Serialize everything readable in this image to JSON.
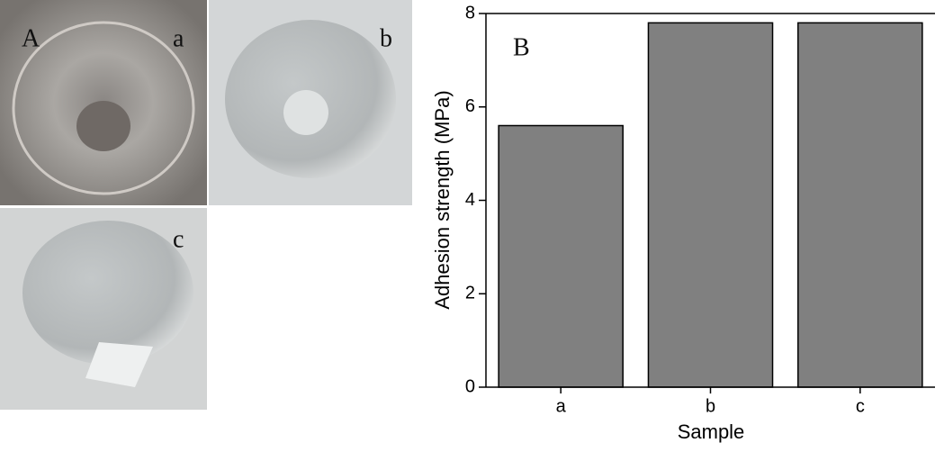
{
  "photos": {
    "panel_label": "A",
    "labels": [
      "a",
      "b",
      "c"
    ]
  },
  "chart_data": {
    "type": "bar",
    "panel_label": "B",
    "x_label": "Sample",
    "y_label": "Adhesion strength (MPa)",
    "categories": [
      "a",
      "b",
      "c"
    ],
    "values": [
      5.6,
      7.8,
      7.8
    ],
    "color": "#808080",
    "ylim": [
      0,
      8
    ],
    "yticks": [
      0,
      2,
      4,
      6,
      8
    ],
    "grid": false
  }
}
